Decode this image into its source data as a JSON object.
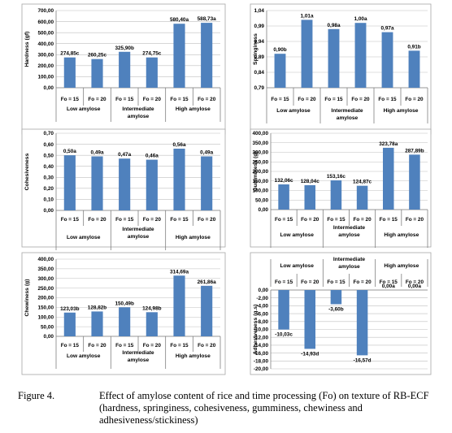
{
  "caption": {
    "label": "Figure 4.",
    "text": "Effect of amylose content of rice and time processing (Fo) on texture of RB-ECF (hardness, springiness, cohesiveness, gumminess, chewiness and adhesiveness/stickiness)"
  },
  "chart_data": [
    {
      "type": "bar",
      "ylabel": "Hardness (gf)",
      "ylim": [
        0,
        700
      ],
      "yticks": [
        "0,00",
        "100,00",
        "200,00",
        "300,00",
        "400,00",
        "500,00",
        "600,00",
        "700,00"
      ],
      "categories": [
        "Fo = 15",
        "Fo = 20",
        "Fo = 15",
        "Fo = 20",
        "Fo = 15",
        "Fo = 20"
      ],
      "groups": [
        [
          "Low amylose"
        ],
        [
          "Intermediate",
          "amylose"
        ],
        [
          "High amylose"
        ]
      ],
      "values": [
        274.85,
        260.25,
        325.9,
        274.75,
        580.4,
        588.73
      ],
      "labels": [
        "274,85c",
        "260,25c",
        "325,90b",
        "274,75c",
        "580,40a",
        "588,73a"
      ],
      "grid": true,
      "bar_color": "#4f81bd"
    },
    {
      "type": "bar",
      "ylabel": "Springiness",
      "ylim": [
        0.79,
        1.04
      ],
      "yticks": [
        "0,79",
        "0,84",
        "0,89",
        "0,94",
        "0,99",
        "1,04"
      ],
      "categories": [
        "Fo = 15",
        "Fo = 20",
        "Fo = 15",
        "Fo = 20",
        "Fo = 15",
        "Fo = 20"
      ],
      "groups": [
        [
          "Low amylose"
        ],
        [
          "Intermediate",
          "amylose"
        ],
        [
          "High amylose"
        ]
      ],
      "values": [
        0.9,
        1.01,
        0.98,
        1.0,
        0.97,
        0.91
      ],
      "labels": [
        "0,90b",
        "1,01a",
        "0,98a",
        "1,00a",
        "0,97a",
        "0,91b"
      ],
      "grid": true,
      "bar_color": "#4f81bd"
    },
    {
      "type": "bar",
      "ylabel": "Cohesiveness",
      "ylim": [
        0,
        0.7
      ],
      "yticks": [
        "0,00",
        "0,10",
        "0,20",
        "0,30",
        "0,40",
        "0,50",
        "0,60",
        "0,70"
      ],
      "categories": [
        "Fo = 15",
        "Fo = 20",
        "Fo = 15",
        "Fo = 20",
        "Fo = 15",
        "Fo = 20"
      ],
      "groups": [
        [
          "Low amylose"
        ],
        [
          "Intermediate",
          "amylose"
        ],
        [
          "High amylose"
        ]
      ],
      "values": [
        0.5,
        0.49,
        0.47,
        0.46,
        0.56,
        0.49
      ],
      "labels": [
        "0,50a",
        "0,49a",
        "0,47a",
        "0,46a",
        "0,56a",
        "0,49a"
      ],
      "grid": true,
      "bar_color": "#4f81bd"
    },
    {
      "type": "bar",
      "ylabel": "Gumminess (g)",
      "ylim": [
        0,
        400
      ],
      "yticks": [
        "0,00",
        "50,00",
        "100,00",
        "150,00",
        "200,00",
        "250,00",
        "300,00",
        "350,00",
        "400,00"
      ],
      "categories": [
        "Fo = 15",
        "Fo = 20",
        "Fo = 15",
        "Fo = 20",
        "Fo = 15",
        "Fo = 20"
      ],
      "groups": [
        [
          "Low amylose"
        ],
        [
          "Intermediate",
          "amylose"
        ],
        [
          "High amylose"
        ]
      ],
      "values": [
        132.06,
        128.04,
        153.16,
        124.87,
        323.78,
        287.89
      ],
      "labels": [
        "132,06c",
        "128,04c",
        "153,16c",
        "124,87c",
        "323,78a",
        "287,89b"
      ],
      "grid": true,
      "bar_color": "#4f81bd"
    },
    {
      "type": "bar",
      "ylabel": "Chewiness (g)",
      "ylim": [
        0,
        400
      ],
      "yticks": [
        "0,00",
        "50,00",
        "100,00",
        "150,00",
        "200,00",
        "250,00",
        "300,00",
        "350,00",
        "400,00"
      ],
      "categories": [
        "Fo = 15",
        "Fo = 20",
        "Fo = 15",
        "Fo = 20",
        "Fo = 15",
        "Fo = 20"
      ],
      "groups": [
        [
          "Low amylose"
        ],
        [
          "Intermediate",
          "amylose"
        ],
        [
          "High amylose"
        ]
      ],
      "values": [
        123.03,
        128.82,
        150.49,
        124.98,
        314.69,
        261.86
      ],
      "labels": [
        "123,03b",
        "128,82b",
        "150,49b",
        "124,98b",
        "314,69a",
        "261,86a"
      ],
      "grid": true,
      "bar_color": "#4f81bd"
    },
    {
      "type": "bar",
      "ylabel": "Adhesiveness (g.s)",
      "ylim": [
        -20,
        0
      ],
      "yticks": [
        "0,00",
        "-2,00",
        "-4,00",
        "-6,00",
        "-8,00",
        "-10,00",
        "-12,00",
        "-14,00",
        "-16,00",
        "-18,00",
        "-20,00"
      ],
      "categories": [
        "Fo = 15",
        "Fo = 20",
        "Fo = 15",
        "Fo = 20",
        "Fo = 15",
        "Fo = 20"
      ],
      "groups": [
        [
          "Low amylose"
        ],
        [
          "Intermediate",
          "amylose"
        ],
        [
          "High amylose"
        ]
      ],
      "values": [
        -10.03,
        -14.93,
        -3.6,
        -16.57,
        0.0,
        0.0
      ],
      "labels": [
        "-10,03c",
        "-14,93d",
        "-3,60b",
        "-16,57d",
        "0,00a",
        "0,00a"
      ],
      "grid": true,
      "bar_color": "#4f81bd"
    }
  ]
}
